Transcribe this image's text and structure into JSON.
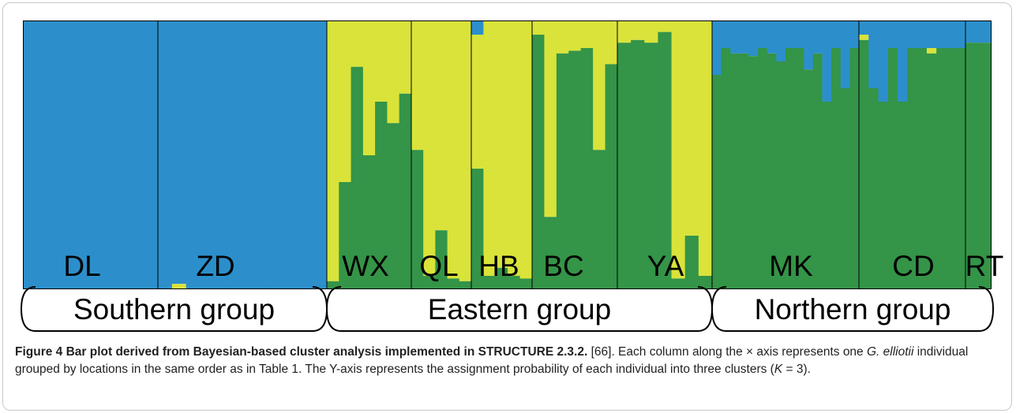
{
  "chart_data": {
    "type": "stacked_bar",
    "y_range": [
      0,
      1
    ],
    "series": [
      {
        "name": "",
        "color": "#2c8fcb"
      },
      {
        "name": "",
        "color": "#d9e33a"
      },
      {
        "name": "",
        "color": "#349447"
      }
    ],
    "populations": [
      {
        "label": "DL",
        "individuals": [
          [
            1,
            0,
            0
          ],
          [
            1,
            0,
            0
          ],
          [
            1,
            0,
            0
          ],
          [
            1,
            0,
            0
          ],
          [
            1,
            0,
            0
          ],
          [
            1,
            0,
            0
          ],
          [
            1,
            0,
            0
          ],
          [
            1,
            0,
            0
          ]
        ]
      },
      {
        "label": "ZD",
        "individuals": [
          [
            1,
            0,
            0
          ],
          [
            0.98,
            0.02,
            0
          ],
          [
            1,
            0,
            0
          ],
          [
            1,
            0,
            0
          ],
          [
            1,
            0,
            0
          ],
          [
            1,
            0,
            0
          ],
          [
            1,
            0,
            0
          ],
          [
            1,
            0,
            0
          ],
          [
            1,
            0,
            0
          ],
          [
            1,
            0,
            0
          ],
          [
            1,
            0,
            0
          ],
          [
            1,
            0,
            0
          ]
        ]
      },
      {
        "label": "WX",
        "individuals": [
          [
            0,
            0.97,
            0.03
          ],
          [
            0,
            0.6,
            0.4
          ],
          [
            0,
            0.17,
            0.83
          ],
          [
            0,
            0.5,
            0.5
          ],
          [
            0,
            0.3,
            0.7
          ],
          [
            0,
            0.38,
            0.62
          ],
          [
            0,
            0.27,
            0.73
          ]
        ]
      },
      {
        "label": "QL",
        "individuals": [
          [
            0,
            0.48,
            0.52
          ],
          [
            0,
            0.95,
            0.05
          ],
          [
            0,
            0.78,
            0.22
          ],
          [
            0,
            0.96,
            0.04
          ],
          [
            0,
            0.97,
            0.03
          ]
        ]
      },
      {
        "label": "HB",
        "individuals": [
          [
            0.05,
            0.5,
            0.45
          ],
          [
            0,
            0.95,
            0.05
          ],
          [
            0,
            0.92,
            0.08
          ],
          [
            0,
            0.95,
            0.05
          ],
          [
            0,
            0.96,
            0.04
          ]
        ]
      },
      {
        "label": "BC",
        "individuals": [
          [
            0,
            0.05,
            0.95
          ],
          [
            0,
            0.73,
            0.27
          ],
          [
            0,
            0.12,
            0.88
          ],
          [
            0,
            0.11,
            0.89
          ],
          [
            0,
            0.1,
            0.9
          ],
          [
            0,
            0.48,
            0.52
          ],
          [
            0,
            0.16,
            0.84
          ]
        ]
      },
      {
        "label": "YA",
        "individuals": [
          [
            0,
            0.08,
            0.92
          ],
          [
            0,
            0.07,
            0.93
          ],
          [
            0,
            0.08,
            0.92
          ],
          [
            0,
            0.04,
            0.96
          ],
          [
            0,
            0.96,
            0.04
          ],
          [
            0,
            0.8,
            0.2
          ],
          [
            0,
            0.95,
            0.05
          ]
        ]
      },
      {
        "label": "MK",
        "individuals": [
          [
            0.2,
            0,
            0.8
          ],
          [
            0.1,
            0,
            0.9
          ],
          [
            0.12,
            0,
            0.88
          ],
          [
            0.12,
            0,
            0.88
          ],
          [
            0.13,
            0,
            0.87
          ],
          [
            0.1,
            0,
            0.9
          ],
          [
            0.12,
            0,
            0.88
          ],
          [
            0.15,
            0,
            0.85
          ],
          [
            0.1,
            0,
            0.9
          ],
          [
            0.1,
            0,
            0.9
          ],
          [
            0.18,
            0,
            0.82
          ],
          [
            0.12,
            0,
            0.88
          ],
          [
            0.3,
            0,
            0.7
          ],
          [
            0.1,
            0,
            0.9
          ],
          [
            0.25,
            0,
            0.75
          ],
          [
            0.1,
            0,
            0.9
          ]
        ]
      },
      {
        "label": "CD",
        "individuals": [
          [
            0.05,
            0.02,
            0.93
          ],
          [
            0.25,
            0,
            0.75
          ],
          [
            0.3,
            0,
            0.7
          ],
          [
            0.1,
            0,
            0.9
          ],
          [
            0.3,
            0,
            0.7
          ],
          [
            0.1,
            0,
            0.9
          ],
          [
            0.1,
            0,
            0.9
          ],
          [
            0.1,
            0.02,
            0.88
          ],
          [
            0.1,
            0,
            0.9
          ],
          [
            0.1,
            0,
            0.9
          ],
          [
            0.1,
            0,
            0.9
          ]
        ]
      },
      {
        "label": "RT",
        "individuals": [
          [
            0.08,
            0,
            0.92
          ],
          [
            0.08,
            0,
            0.92
          ],
          [
            0.08,
            0,
            0.92
          ]
        ]
      }
    ],
    "groups": [
      {
        "label": "Southern group"
      },
      {
        "label": "Eastern group"
      },
      {
        "label": "Northern group"
      }
    ]
  },
  "caption": {
    "title": "Figure 4 Bar plot derived from Bayesian-based cluster analysis implemented in STRUCTURE 2.3.2.",
    "text_a": " [66]. Each column along the × axis represents one ",
    "species": "G. elliotii",
    "text_b": " individual grouped by locations in the same order as in Table 1. The Y-axis represents the assignment probability of each individual into three clusters (",
    "k_var": "K",
    "text_c": " = 3)."
  }
}
